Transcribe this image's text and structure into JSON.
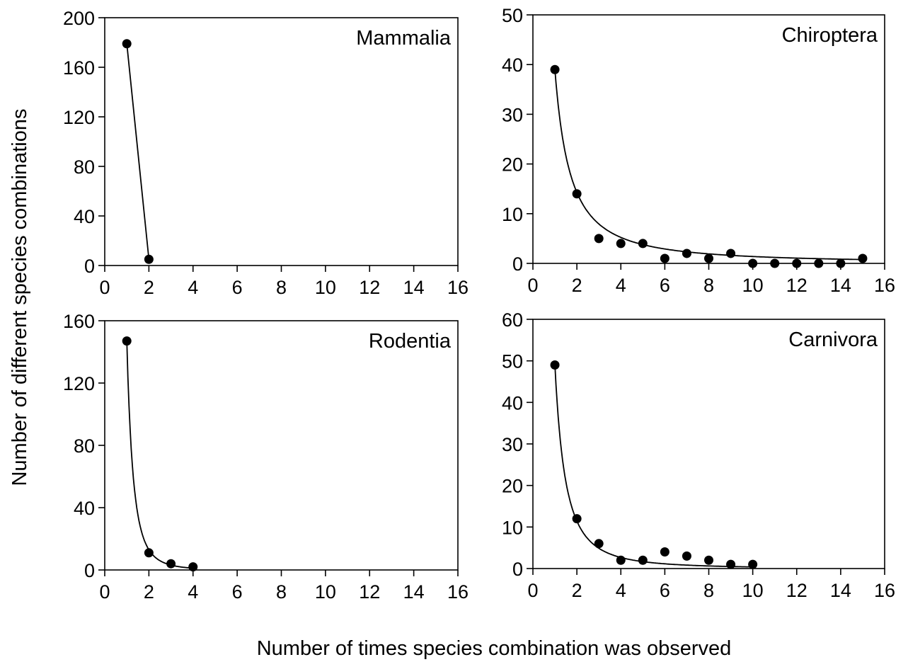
{
  "figure": {
    "ylabel": "Number of different species combinations",
    "xlabel": "Number of times species combination was observed"
  },
  "colors": {
    "ink": "#000000",
    "background": "#ffffff"
  },
  "chart_data": [
    {
      "type": "scatter",
      "panel": "top-left",
      "title": "Mammalia",
      "title_placement": "top-right",
      "xlim": [
        0,
        16
      ],
      "ylim": [
        0,
        200
      ],
      "xticks": [
        0,
        2,
        4,
        6,
        8,
        10,
        12,
        14,
        16
      ],
      "yticks": [
        0,
        40,
        80,
        120,
        160,
        200
      ],
      "points": [
        [
          1,
          179
        ],
        [
          2,
          5
        ]
      ],
      "line": "straight",
      "fit": null
    },
    {
      "type": "scatter",
      "panel": "top-right",
      "title": "Chiroptera",
      "title_placement": "top-right",
      "xlim": [
        0,
        16
      ],
      "ylim": [
        0,
        50
      ],
      "xticks": [
        0,
        2,
        4,
        6,
        8,
        10,
        12,
        14,
        16
      ],
      "yticks": [
        0,
        10,
        20,
        30,
        40,
        50
      ],
      "points": [
        [
          1,
          39
        ],
        [
          2,
          14
        ],
        [
          3,
          5
        ],
        [
          4,
          4
        ],
        [
          5,
          4
        ],
        [
          6,
          1
        ],
        [
          7,
          2
        ],
        [
          8,
          1
        ],
        [
          9,
          2
        ],
        [
          10,
          0
        ],
        [
          11,
          0
        ],
        [
          12,
          0
        ],
        [
          13,
          0
        ],
        [
          14,
          0
        ],
        [
          15,
          1
        ]
      ],
      "line": "fit",
      "fit": {
        "form": "power",
        "a": 39,
        "b": 1.45,
        "x_range": [
          1,
          15
        ]
      }
    },
    {
      "type": "scatter",
      "panel": "bottom-left",
      "title": "Rodentia",
      "title_placement": "top-right",
      "xlim": [
        0,
        16
      ],
      "ylim": [
        0,
        160
      ],
      "xticks": [
        0,
        2,
        4,
        6,
        8,
        10,
        12,
        14,
        16
      ],
      "yticks": [
        0,
        40,
        80,
        120,
        160
      ],
      "points": [
        [
          1,
          147
        ],
        [
          2,
          11
        ],
        [
          3,
          4
        ],
        [
          4,
          2
        ]
      ],
      "line": "fit",
      "fit": {
        "form": "power",
        "a": 147,
        "b": 3.5,
        "x_range": [
          1,
          4
        ]
      }
    },
    {
      "type": "scatter",
      "panel": "bottom-right",
      "title": "Carnivora",
      "title_placement": "top-right",
      "xlim": [
        0,
        16
      ],
      "ylim": [
        0,
        60
      ],
      "xticks": [
        0,
        2,
        4,
        6,
        8,
        10,
        12,
        14,
        16
      ],
      "yticks": [
        0,
        10,
        20,
        30,
        40,
        50,
        60
      ],
      "points": [
        [
          1,
          49
        ],
        [
          2,
          12
        ],
        [
          3,
          6
        ],
        [
          4,
          2
        ],
        [
          5,
          2
        ],
        [
          6,
          4
        ],
        [
          7,
          3
        ],
        [
          8,
          2
        ],
        [
          9,
          1
        ],
        [
          10,
          1
        ]
      ],
      "line": "fit",
      "fit": {
        "form": "power",
        "a": 49,
        "b": 2.1,
        "x_range": [
          1,
          10
        ]
      }
    }
  ]
}
